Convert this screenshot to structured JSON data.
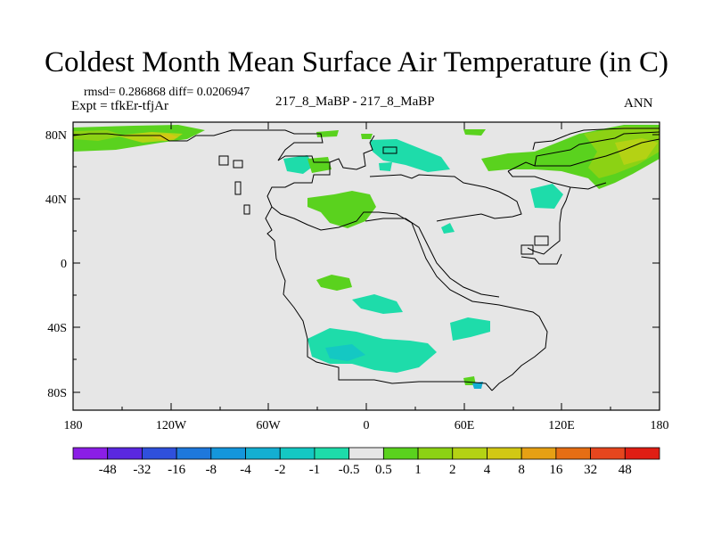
{
  "title": "Coldest Month Mean Surface Air Temperature (in C)",
  "stats": "rmsd= 0.286868 diff= 0.0206947",
  "experiment": "Expt = tfkEr-tfjAr",
  "subtitle": "217_8_MaBP - 217_8_MaBP",
  "season": "ANN",
  "lat_labels": [
    "80N",
    "40N",
    "0",
    "40S",
    "80S"
  ],
  "lon_labels": [
    "180",
    "120W",
    "60W",
    "0",
    "60E",
    "120E",
    "180"
  ],
  "colorbar": {
    "labels": [
      "-48",
      "-32",
      "-16",
      "-8",
      "-4",
      "-2",
      "-1",
      "-0.5",
      "0.5",
      "1",
      "2",
      "4",
      "8",
      "16",
      "32",
      "48"
    ],
    "colors": [
      "#8b1ee6",
      "#5a28e0",
      "#2f50dc",
      "#1e78dc",
      "#1496dc",
      "#14afd2",
      "#14c8c3",
      "#1edcaa",
      "#e6e6e6",
      "#5ad21e",
      "#8cd214",
      "#b4d214",
      "#d2c814",
      "#e6a014",
      "#e66e14",
      "#e6461e",
      "#e01e14"
    ]
  },
  "map_background": "#e6e6e6"
}
